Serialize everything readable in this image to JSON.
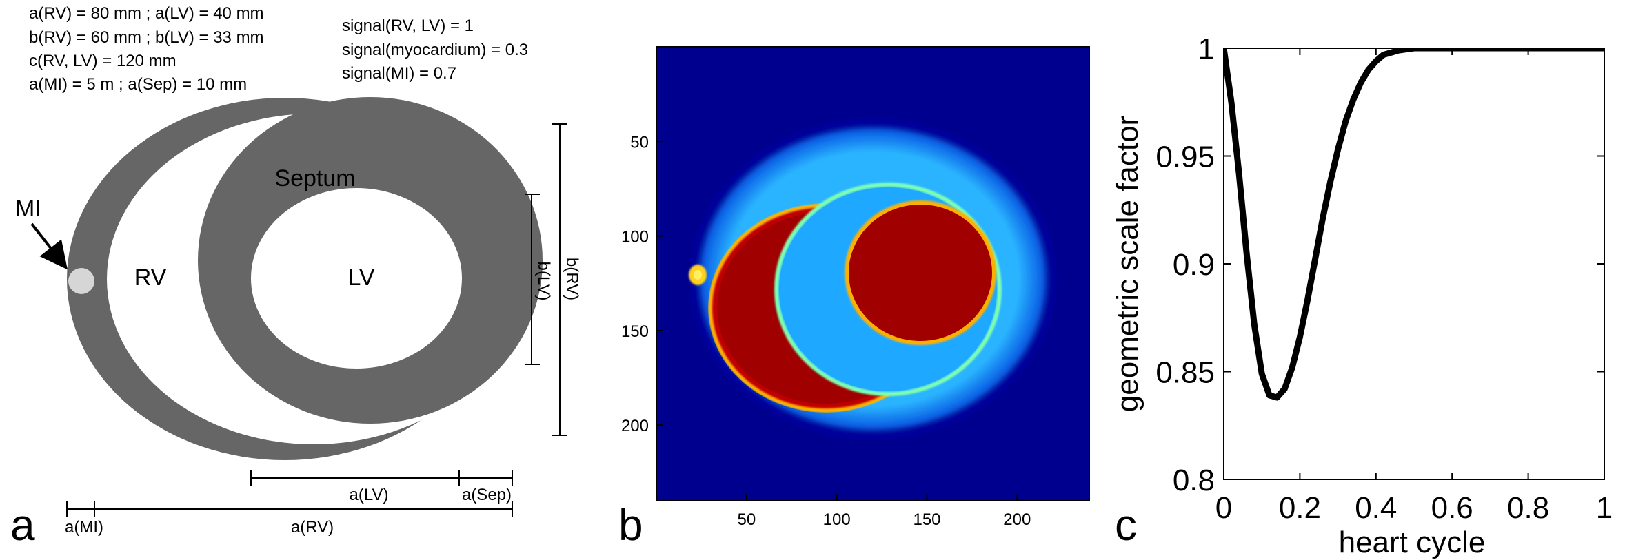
{
  "panel_a": {
    "letter": "a",
    "params_left": [
      "a(RV) = 80 mm ; a(LV) = 40 mm",
      "b(RV) = 60 mm ; b(LV) = 33 mm",
      "c(RV, LV) = 120 mm",
      "a(MI) = 5 m ; a(Sep) = 10 mm"
    ],
    "params_right": [
      "signal(RV, LV) = 1",
      "signal(myocardium) = 0.3",
      "signal(MI) = 0.7"
    ],
    "labels": {
      "mi": "MI",
      "rv": "RV",
      "lv": "LV",
      "septum": "Septum",
      "b_lv": "b(LV)",
      "b_rv": "b(RV)",
      "a_lv": "a(LV)",
      "a_sep": "a(Sep)",
      "a_mi": "a(MI)",
      "a_rv": "a(RV)"
    },
    "colors": {
      "myocardium": "#666666",
      "mi": "#d6d6d6",
      "cavity": "#ffffff"
    }
  },
  "panel_b": {
    "letter": "b",
    "x_ticks": [
      50,
      100,
      150,
      200
    ],
    "y_ticks": [
      50,
      100,
      150,
      200
    ],
    "x_range": [
      0,
      240
    ],
    "y_range": [
      0,
      240
    ],
    "colormap": "jet",
    "colors": {
      "background": "#00008f",
      "myocardium": "#1fa8ff",
      "blood": "#a00000",
      "mi": "#ffd21a"
    }
  },
  "panel_c": {
    "letter": "c",
    "chart_data": {
      "type": "line",
      "xlabel": "heart cycle",
      "ylabel": "geometric scale factor",
      "xlim": [
        0,
        1
      ],
      "ylim": [
        0.8,
        1
      ],
      "x_ticks": [
        "0",
        "0.2",
        "0.4",
        "0.6",
        "0.8",
        "1"
      ],
      "y_ticks": [
        "0.8",
        "0.85",
        "0.9",
        "0.95",
        "1"
      ],
      "series": [
        {
          "x": [
            0,
            0.02,
            0.04,
            0.06,
            0.08,
            0.1,
            0.12,
            0.14,
            0.16,
            0.18,
            0.2,
            0.22,
            0.24,
            0.26,
            0.28,
            0.3,
            0.32,
            0.34,
            0.36,
            0.38,
            0.4,
            0.42,
            0.44,
            0.46,
            0.48,
            0.5,
            0.55,
            0.6,
            0.7,
            0.8,
            0.9,
            1.0
          ],
          "y": [
            1.0,
            0.975,
            0.942,
            0.905,
            0.872,
            0.849,
            0.839,
            0.838,
            0.842,
            0.852,
            0.866,
            0.883,
            0.902,
            0.921,
            0.938,
            0.953,
            0.966,
            0.976,
            0.984,
            0.99,
            0.994,
            0.997,
            0.998,
            0.999,
            0.9995,
            1.0,
            1.0,
            1.0,
            1.0,
            1.0,
            1.0,
            1.0
          ]
        }
      ]
    }
  }
}
